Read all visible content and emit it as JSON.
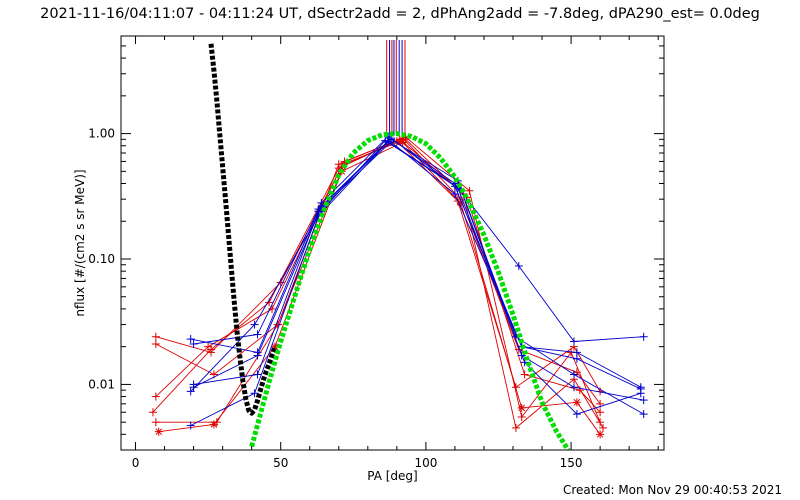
{
  "header": {
    "title": "2021-11-16/04:11:07 - 04:11:24 UT, dSectr2add = 2, dPhAng2add = -7.8deg, dPA290_est=  0.0deg"
  },
  "footer": {
    "created": "Created: Mon Nov 29 00:40:53 2021"
  },
  "chart_data": {
    "type": "line",
    "title": "2021-11-16/04:11:07 - 04:11:24 UT, dSectr2add = 2, dPhAng2add = -7.8deg, dPA290_est=  0.0deg",
    "xlabel": "PA [deg]",
    "ylabel": "nflux [#/(cm2 s sr MeV)]",
    "xlim": [
      -5,
      182
    ],
    "ylim": [
      0.003,
      6
    ],
    "yscale": "log",
    "x_ticks": [
      0,
      50,
      100,
      150
    ],
    "x_tick_labels": [
      "0",
      "50",
      "100",
      "150"
    ],
    "y_ticks": [
      0.01,
      0.1,
      1.0
    ],
    "y_tick_labels": [
      "0.01",
      "0.10",
      "1.00"
    ],
    "grid": false,
    "colors": {
      "red": "#dd0000",
      "blue": "#0000cc",
      "black": "#000000",
      "green": "#00dd00"
    },
    "vertical_markers": [
      {
        "x": 86.5,
        "color": "#dd0000"
      },
      {
        "x": 87.5,
        "color": "#0000cc"
      },
      {
        "x": 88.3,
        "color": "#dd0000"
      },
      {
        "x": 89.0,
        "color": "#0000cc"
      },
      {
        "x": 89.8,
        "color": "#dd0000"
      },
      {
        "x": 90.8,
        "color": "#0000cc"
      },
      {
        "x": 91.8,
        "color": "#0000cc"
      },
      {
        "x": 92.8,
        "color": "#dd0000"
      }
    ],
    "series": [
      {
        "color": "#dd0000",
        "marker": "+",
        "x": [
          7,
          26,
          50,
          72,
          93,
          115,
          133,
          150,
          160
        ],
        "y": [
          0.024,
          0.018,
          0.065,
          0.6,
          0.94,
          0.35,
          0.0055,
          0.018,
          0.005
        ]
      },
      {
        "color": "#dd0000",
        "marker": "+",
        "x": [
          7,
          27,
          49,
          70,
          91,
          113,
          131,
          151,
          161
        ],
        "y": [
          0.021,
          0.012,
          0.03,
          0.57,
          0.9,
          0.33,
          0.0045,
          0.011,
          0.0045
        ]
      },
      {
        "color": "#dd0000",
        "marker": "+",
        "x": [
          7,
          25,
          47,
          71,
          92,
          112,
          132,
          152,
          160
        ],
        "y": [
          0.008,
          0.02,
          0.04,
          0.55,
          0.92,
          0.3,
          0.019,
          0.0125,
          0.007
        ]
      },
      {
        "color": "#dd0000",
        "marker": "+",
        "x": [
          6,
          26,
          46,
          70,
          90,
          111,
          131,
          151,
          160
        ],
        "y": [
          0.006,
          0.019,
          0.045,
          0.53,
          0.87,
          0.29,
          0.0095,
          0.02,
          0.0088
        ]
      },
      {
        "color": "#dd0000",
        "marker": "*",
        "x": [
          8,
          27,
          48,
          71,
          92,
          112,
          133,
          152,
          160
        ],
        "y": [
          0.0042,
          0.0048,
          0.02,
          0.5,
          0.85,
          0.28,
          0.0065,
          0.0072,
          0.004
        ]
      },
      {
        "color": "#dd0000",
        "marker": "+",
        "x": [
          7,
          28,
          49,
          72,
          93,
          114,
          134,
          153,
          160
        ],
        "y": [
          0.005,
          0.005,
          0.03,
          0.58,
          0.9,
          0.31,
          0.012,
          0.009,
          0.006
        ]
      },
      {
        "color": "#0000cc",
        "marker": "+",
        "x": [
          19,
          42,
          64,
          87,
          110,
          132,
          151,
          175
        ],
        "y": [
          0.023,
          0.018,
          0.28,
          0.95,
          0.4,
          0.088,
          0.022,
          0.024
        ]
      },
      {
        "color": "#0000cc",
        "marker": "+",
        "x": [
          20,
          42,
          63,
          88,
          110,
          133,
          152,
          174
        ],
        "y": [
          0.021,
          0.025,
          0.25,
          0.92,
          0.38,
          0.02,
          0.018,
          0.0095
        ]
      },
      {
        "color": "#0000cc",
        "marker": "+",
        "x": [
          19,
          41,
          64,
          86,
          111,
          134,
          152,
          174
        ],
        "y": [
          0.0088,
          0.03,
          0.24,
          0.88,
          0.37,
          0.015,
          0.0058,
          0.0085
        ]
      },
      {
        "color": "#0000cc",
        "marker": "+",
        "x": [
          19,
          41,
          63,
          87,
          112,
          133,
          151,
          175
        ],
        "y": [
          0.0047,
          0.0085,
          0.22,
          0.86,
          0.36,
          0.017,
          0.0095,
          0.0075
        ]
      },
      {
        "color": "#0000cc",
        "marker": "+",
        "x": [
          20,
          42,
          64,
          88,
          111,
          131,
          151,
          175
        ],
        "y": [
          0.0095,
          0.017,
          0.26,
          0.9,
          0.42,
          0.024,
          0.012,
          0.0058
        ]
      },
      {
        "color": "#0000cc",
        "marker": "+",
        "x": [
          20,
          42,
          63,
          88,
          110,
          133,
          152,
          174
        ],
        "y": [
          0.01,
          0.012,
          0.24,
          0.86,
          0.33,
          0.02,
          0.016,
          0.0092
        ]
      }
    ],
    "fit_curves": [
      {
        "color": "#000000",
        "style": "dashed",
        "x": [
          26,
          27,
          28,
          29,
          30,
          31,
          32,
          33,
          34,
          35,
          36,
          37,
          38,
          39,
          40,
          41,
          42,
          43,
          44,
          45,
          46,
          48
        ],
        "y": [
          5.2,
          3.2,
          1.85,
          1.0,
          0.55,
          0.3,
          0.16,
          0.085,
          0.046,
          0.026,
          0.016,
          0.0105,
          0.0076,
          0.0062,
          0.0059,
          0.0063,
          0.0074,
          0.009,
          0.0108,
          0.0127,
          0.0146,
          0.02
        ]
      },
      {
        "color": "#00dd00",
        "style": "dashed",
        "x": [
          40,
          43,
          46,
          50,
          55,
          60,
          65,
          70,
          75,
          80,
          85,
          90,
          95,
          100,
          105,
          110,
          115,
          120,
          125,
          130,
          135,
          140,
          145,
          149
        ],
        "y": [
          0.0032,
          0.0058,
          0.0105,
          0.022,
          0.052,
          0.12,
          0.25,
          0.47,
          0.7,
          0.88,
          0.98,
          1.0,
          0.95,
          0.83,
          0.64,
          0.45,
          0.28,
          0.155,
          0.078,
          0.036,
          0.0155,
          0.0072,
          0.0042,
          0.003
        ]
      }
    ]
  }
}
